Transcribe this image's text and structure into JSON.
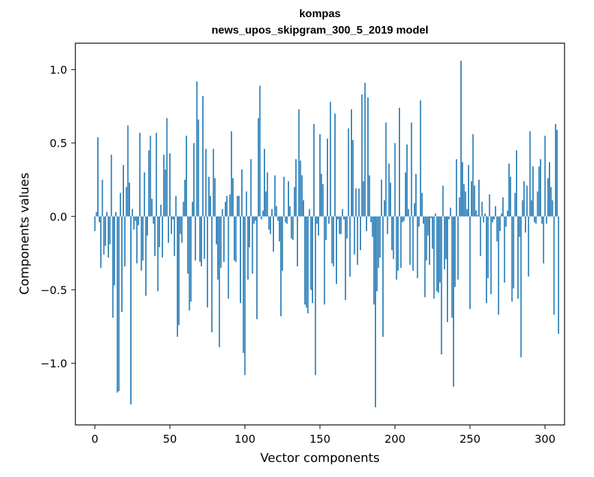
{
  "chart_data": {
    "type": "bar",
    "title": [
      "kompas",
      "news_upos_skipgram_300_5_2019 model"
    ],
    "xlabel": "Vector components",
    "ylabel": "Components values",
    "xlim": [
      -13,
      313
    ],
    "ylim": [
      -1.42,
      1.18
    ],
    "xticks": [
      0,
      50,
      100,
      150,
      200,
      250,
      300
    ],
    "xtick_labels": [
      "0",
      "50",
      "100",
      "150",
      "200",
      "250",
      "300"
    ],
    "yticks": [
      -1.0,
      -0.5,
      0.0,
      0.5,
      1.0
    ],
    "ytick_labels": [
      "−1.0",
      "−0.5",
      "0.0",
      "0.5",
      "1.0"
    ],
    "bar_color": "#1f77b4",
    "values": [
      -0.1,
      0.03,
      0.54,
      -0.04,
      -0.35,
      0.25,
      -0.26,
      -0.2,
      0.03,
      -0.28,
      -0.19,
      0.42,
      -0.69,
      -0.47,
      0.03,
      -1.2,
      -1.19,
      0.16,
      -0.65,
      0.35,
      -0.34,
      0.2,
      0.62,
      0.23,
      -1.28,
      0.05,
      -0.09,
      -0.03,
      -0.32,
      -0.06,
      0.57,
      -0.37,
      -0.3,
      0.3,
      -0.54,
      -0.13,
      0.45,
      0.55,
      0.12,
      -0.05,
      -0.27,
      0.57,
      -0.51,
      -0.21,
      0.08,
      -0.28,
      0.42,
      0.32,
      0.67,
      -0.18,
      0.43,
      -0.12,
      -0.02,
      -0.27,
      0.14,
      -0.82,
      -0.74,
      -0.12,
      -0.18,
      0.1,
      0.25,
      0.55,
      -0.39,
      -0.64,
      -0.58,
      0.1,
      0.5,
      -0.3,
      0.92,
      0.66,
      -0.31,
      -0.34,
      0.82,
      -0.29,
      0.46,
      -0.62,
      0.27,
      0.14,
      -0.79,
      0.46,
      0.26,
      -0.19,
      -0.43,
      -0.89,
      -0.35,
      0.05,
      -0.31,
      0.1,
      0.14,
      -0.56,
      0.15,
      0.58,
      0.26,
      -0.3,
      -0.31,
      0.14,
      0.14,
      -0.59,
      0.32,
      -0.93,
      -1.08,
      0.17,
      -0.43,
      -0.21,
      0.39,
      -0.39,
      -0.05,
      -0.03,
      -0.7,
      0.67,
      0.89,
      -0.02,
      0.04,
      0.46,
      0.17,
      0.3,
      -0.09,
      -0.12,
      0.05,
      -0.24,
      0.28,
      0.07,
      -0.03,
      -0.17,
      -0.68,
      -0.37,
      0.27,
      -0.04,
      -0.05,
      0.24,
      0.07,
      -0.15,
      -0.16,
      0.2,
      0.39,
      -0.34,
      0.73,
      0.38,
      0.28,
      0.11,
      -0.6,
      -0.62,
      -0.66,
      0.05,
      -0.5,
      -0.59,
      0.63,
      -1.08,
      -0.05,
      -0.13,
      0.56,
      0.29,
      0.22,
      -0.6,
      -0.16,
      0.53,
      -0.05,
      0.78,
      -0.32,
      -0.34,
      0.7,
      -0.46,
      -0.02,
      -0.12,
      -0.12,
      0.05,
      -0.02,
      -0.57,
      -0.15,
      0.6,
      -0.41,
      0.73,
      0.52,
      -0.26,
      0.19,
      -0.33,
      0.19,
      -0.23,
      0.83,
      0.24,
      0.91,
      -0.1,
      0.81,
      0.28,
      -0.04,
      -0.14,
      -0.6,
      -1.3,
      -0.51,
      -0.35,
      -0.28,
      0.25,
      -0.82,
      0.11,
      0.64,
      -0.12,
      0.36,
      0.23,
      -0.23,
      -0.29,
      0.5,
      -0.43,
      -0.37,
      0.74,
      -0.35,
      -0.04,
      -0.03,
      0.3,
      0.49,
      0.05,
      -0.33,
      0.64,
      -0.37,
      0.09,
      0.29,
      -0.42,
      -0.07,
      0.79,
      0.16,
      -0.05,
      -0.55,
      -0.3,
      -0.13,
      -0.33,
      -0.01,
      -0.22,
      -0.56,
      0.02,
      -0.51,
      -0.52,
      -0.45,
      -0.94,
      0.21,
      -0.36,
      -0.29,
      -0.72,
      -0.02,
      0.06,
      -0.69,
      -1.16,
      -0.48,
      0.39,
      -0.43,
      0.13,
      1.06,
      0.37,
      0.22,
      0.17,
      0.05,
      0.35,
      -0.63,
      0.24,
      0.56,
      0.21,
      0.04,
      0.01,
      0.25,
      -0.27,
      0.1,
      -0.04,
      0.02,
      -0.59,
      -0.42,
      0.15,
      -0.53,
      -0.04,
      -0.02,
      0.07,
      -0.17,
      -0.67,
      -0.1,
      0.02,
      0.13,
      -0.45,
      -0.07,
      0.04,
      0.36,
      0.27,
      -0.58,
      -0.49,
      0.16,
      0.45,
      -0.56,
      -0.14,
      -0.96,
      0.11,
      0.24,
      -0.11,
      0.21,
      -0.41,
      0.58,
      0.11,
      0.34,
      -0.04,
      -0.05,
      0.17,
      0.34,
      0.39,
      -0.05,
      -0.32,
      0.55,
      -0.05,
      0.26,
      0.37,
      0.2,
      0.11,
      -0.67,
      0.63,
      0.59,
      -0.8
    ]
  }
}
